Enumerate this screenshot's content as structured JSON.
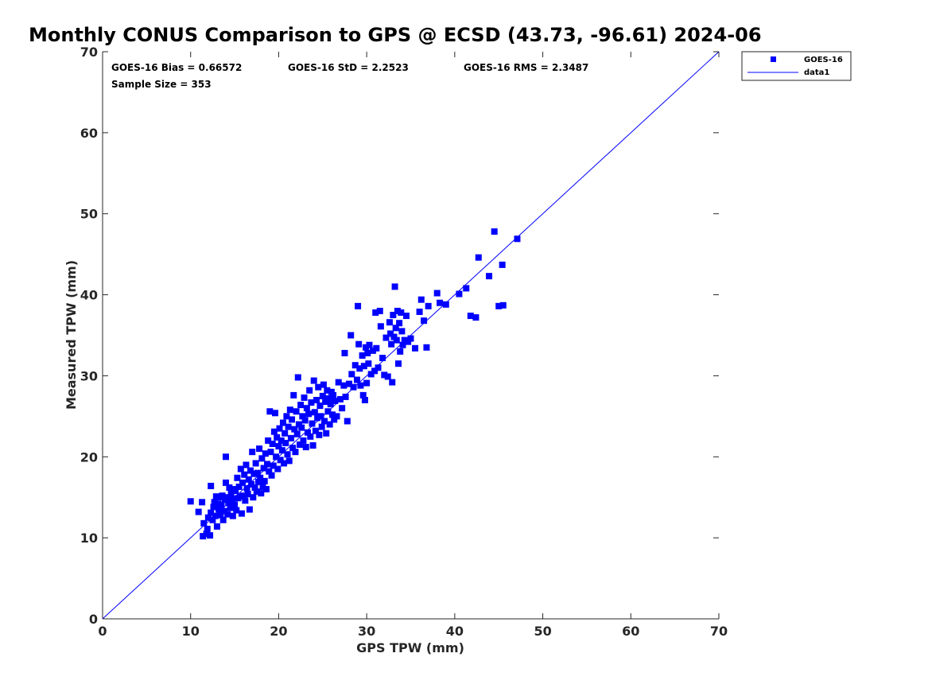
{
  "chart_data": {
    "type": "scatter",
    "title": "Monthly CONUS Comparison to GPS @ ECSD (43.73, -96.61) 2024-06",
    "xlabel": "GPS TPW (mm)",
    "ylabel": "Measured TPW (mm)",
    "xlim": [
      0,
      70
    ],
    "ylim": [
      0,
      70
    ],
    "xticks": [
      "0",
      "10",
      "20",
      "30",
      "40",
      "50",
      "60",
      "70"
    ],
    "yticks": [
      "0",
      "10",
      "20",
      "30",
      "40",
      "50",
      "60",
      "70"
    ],
    "grid": false,
    "legend_position": "outside-top-right",
    "legend": [
      {
        "name": "GOES-16",
        "marker": "square",
        "color": "#0000ff"
      },
      {
        "name": "data1",
        "marker": "line",
        "color": "#0000ff"
      }
    ],
    "stats": {
      "bias": "GOES-16 Bias = 0.66572",
      "std": "GOES-16 StD = 2.2523",
      "rms": "GOES-16 RMS = 2.3487",
      "sample_size": "Sample Size = 353"
    },
    "reference_line": {
      "name": "data1",
      "x": [
        0,
        70
      ],
      "y": [
        0,
        70
      ],
      "color": "#0000ff"
    },
    "series": [
      {
        "name": "GOES-16",
        "color": "#0000ff",
        "points": [
          [
            10.0,
            14.5
          ],
          [
            10.9,
            13.2
          ],
          [
            11.3,
            14.4
          ],
          [
            11.4,
            10.2
          ],
          [
            11.5,
            11.8
          ],
          [
            11.8,
            10.5
          ],
          [
            11.9,
            11.1
          ],
          [
            12.0,
            12.5
          ],
          [
            12.2,
            10.3
          ],
          [
            12.3,
            16.4
          ],
          [
            12.3,
            13.1
          ],
          [
            12.5,
            12.2
          ],
          [
            12.6,
            13.8
          ],
          [
            12.7,
            14.4
          ],
          [
            12.8,
            12.7
          ],
          [
            12.9,
            15.1
          ],
          [
            13.0,
            11.4
          ],
          [
            13.1,
            14.2
          ],
          [
            13.2,
            13.5
          ],
          [
            13.3,
            15.0
          ],
          [
            13.4,
            12.8
          ],
          [
            13.5,
            14.1
          ],
          [
            13.6,
            15.2
          ],
          [
            13.7,
            12.2
          ],
          [
            13.8,
            13.3
          ],
          [
            13.9,
            14.7
          ],
          [
            14.0,
            20.0
          ],
          [
            14.0,
            16.8
          ],
          [
            14.1,
            15.0
          ],
          [
            14.2,
            12.9
          ],
          [
            14.3,
            14.3
          ],
          [
            14.4,
            16.2
          ],
          [
            14.5,
            13.7
          ],
          [
            14.6,
            15.5
          ],
          [
            14.7,
            14.8
          ],
          [
            14.8,
            12.7
          ],
          [
            14.9,
            16.0
          ],
          [
            15.0,
            14.1
          ],
          [
            15.1,
            15.8
          ],
          [
            15.2,
            13.4
          ],
          [
            15.3,
            17.4
          ],
          [
            15.4,
            14.9
          ],
          [
            15.5,
            16.3
          ],
          [
            15.6,
            15.1
          ],
          [
            15.7,
            18.5
          ],
          [
            15.8,
            13.0
          ],
          [
            15.9,
            16.8
          ],
          [
            16.0,
            15.2
          ],
          [
            16.1,
            17.8
          ],
          [
            16.2,
            14.6
          ],
          [
            16.3,
            19.0
          ],
          [
            16.4,
            16.1
          ],
          [
            16.5,
            15.4
          ],
          [
            16.6,
            17.2
          ],
          [
            16.7,
            13.5
          ],
          [
            16.8,
            18.3
          ],
          [
            16.9,
            16.6
          ],
          [
            17.0,
            20.6
          ],
          [
            17.1,
            15.0
          ],
          [
            17.2,
            17.9
          ],
          [
            17.3,
            16.2
          ],
          [
            17.4,
            19.2
          ],
          [
            17.5,
            15.7
          ],
          [
            17.6,
            18.0
          ],
          [
            17.7,
            16.9
          ],
          [
            17.8,
            21.0
          ],
          [
            17.9,
            17.4
          ],
          [
            18.0,
            15.5
          ],
          [
            18.1,
            19.8
          ],
          [
            18.2,
            16.3
          ],
          [
            18.3,
            18.6
          ],
          [
            18.4,
            17.0
          ],
          [
            18.5,
            20.4
          ],
          [
            18.6,
            16.0
          ],
          [
            18.7,
            19.1
          ],
          [
            18.8,
            22.0
          ],
          [
            18.9,
            18.2
          ],
          [
            19.0,
            25.6
          ],
          [
            19.1,
            20.6
          ],
          [
            19.2,
            17.7
          ],
          [
            19.3,
            21.6
          ],
          [
            19.4,
            18.9
          ],
          [
            19.5,
            23.1
          ],
          [
            19.6,
            25.4
          ],
          [
            19.7,
            20.0
          ],
          [
            19.8,
            22.4
          ],
          [
            19.9,
            18.5
          ],
          [
            20.0,
            21.3
          ],
          [
            20.1,
            23.5
          ],
          [
            20.2,
            19.6
          ],
          [
            20.3,
            22.0
          ],
          [
            20.4,
            20.8
          ],
          [
            20.5,
            24.2
          ],
          [
            20.6,
            19.2
          ],
          [
            20.7,
            22.9
          ],
          [
            20.8,
            21.7
          ],
          [
            20.9,
            25.0
          ],
          [
            21.0,
            20.3
          ],
          [
            21.1,
            23.7
          ],
          [
            21.2,
            19.5
          ],
          [
            21.3,
            25.8
          ],
          [
            21.4,
            22.3
          ],
          [
            21.5,
            24.6
          ],
          [
            21.6,
            21.1
          ],
          [
            21.7,
            27.6
          ],
          [
            21.8,
            23.4
          ],
          [
            21.9,
            20.6
          ],
          [
            22.0,
            25.6
          ],
          [
            22.1,
            22.8
          ],
          [
            22.2,
            29.8
          ],
          [
            22.3,
            24.0
          ],
          [
            22.4,
            21.5
          ],
          [
            22.5,
            26.4
          ],
          [
            22.6,
            23.6
          ],
          [
            22.7,
            25.0
          ],
          [
            22.8,
            22.0
          ],
          [
            22.9,
            27.3
          ],
          [
            23.0,
            24.5
          ],
          [
            23.1,
            21.2
          ],
          [
            23.2,
            26.0
          ],
          [
            23.3,
            23.0
          ],
          [
            23.4,
            25.3
          ],
          [
            23.5,
            28.2
          ],
          [
            23.6,
            22.5
          ],
          [
            23.7,
            26.7
          ],
          [
            23.8,
            24.1
          ],
          [
            23.9,
            21.4
          ],
          [
            24.0,
            29.4
          ],
          [
            24.1,
            25.5
          ],
          [
            24.2,
            23.2
          ],
          [
            24.3,
            27.0
          ],
          [
            24.4,
            24.8
          ],
          [
            24.5,
            28.6
          ],
          [
            24.6,
            22.7
          ],
          [
            24.7,
            26.3
          ],
          [
            24.8,
            25.0
          ],
          [
            24.9,
            23.7
          ],
          [
            25.0,
            27.5
          ],
          [
            25.1,
            28.9
          ],
          [
            25.2,
            24.4
          ],
          [
            25.3,
            26.8
          ],
          [
            25.4,
            22.9
          ],
          [
            25.5,
            28.2
          ],
          [
            25.6,
            25.6
          ],
          [
            25.7,
            27.2
          ],
          [
            25.8,
            24.0
          ],
          [
            25.9,
            26.5
          ],
          [
            26.0,
            28.0
          ],
          [
            26.1,
            25.2
          ],
          [
            26.2,
            27.6
          ],
          [
            26.3,
            24.6
          ],
          [
            26.4,
            26.9
          ],
          [
            26.6,
            25.0
          ],
          [
            26.8,
            29.2
          ],
          [
            27.0,
            27.1
          ],
          [
            27.2,
            26.0
          ],
          [
            27.4,
            28.8
          ],
          [
            27.5,
            32.8
          ],
          [
            27.6,
            27.4
          ],
          [
            27.8,
            24.4
          ],
          [
            28.0,
            29.0
          ],
          [
            28.2,
            35.0
          ],
          [
            28.3,
            30.2
          ],
          [
            28.5,
            28.6
          ],
          [
            28.7,
            31.3
          ],
          [
            28.9,
            29.5
          ],
          [
            29.0,
            38.6
          ],
          [
            29.1,
            33.9
          ],
          [
            29.2,
            30.9
          ],
          [
            29.3,
            28.8
          ],
          [
            29.5,
            32.5
          ],
          [
            29.6,
            27.6
          ],
          [
            29.7,
            31.2
          ],
          [
            29.8,
            27.0
          ],
          [
            29.9,
            33.5
          ],
          [
            30.0,
            29.1
          ],
          [
            30.1,
            32.8
          ],
          [
            30.2,
            31.5
          ],
          [
            30.3,
            33.8
          ],
          [
            30.5,
            30.2
          ],
          [
            30.7,
            33.1
          ],
          [
            30.9,
            30.6
          ],
          [
            31.0,
            37.8
          ],
          [
            31.1,
            33.4
          ],
          [
            31.3,
            31.0
          ],
          [
            31.5,
            38.0
          ],
          [
            31.6,
            36.1
          ],
          [
            31.8,
            32.2
          ],
          [
            32.0,
            30.1
          ],
          [
            32.2,
            34.7
          ],
          [
            32.4,
            29.9
          ],
          [
            32.6,
            36.6
          ],
          [
            32.7,
            35.2
          ],
          [
            32.8,
            33.9
          ],
          [
            32.9,
            29.2
          ],
          [
            33.0,
            37.5
          ],
          [
            33.1,
            34.8
          ],
          [
            33.2,
            41.0
          ],
          [
            33.3,
            35.9
          ],
          [
            33.4,
            34.4
          ],
          [
            33.5,
            38.0
          ],
          [
            33.6,
            31.5
          ],
          [
            33.7,
            36.5
          ],
          [
            33.8,
            33.0
          ],
          [
            33.9,
            37.8
          ],
          [
            34.0,
            35.5
          ],
          [
            34.1,
            33.8
          ],
          [
            34.3,
            34.4
          ],
          [
            34.5,
            37.4
          ],
          [
            34.7,
            34.2
          ],
          [
            35.0,
            34.6
          ],
          [
            35.5,
            33.4
          ],
          [
            36.0,
            37.9
          ],
          [
            36.2,
            39.4
          ],
          [
            36.5,
            36.8
          ],
          [
            36.8,
            33.5
          ],
          [
            37.0,
            38.6
          ],
          [
            38.0,
            40.2
          ],
          [
            38.3,
            39.0
          ],
          [
            39.0,
            38.8
          ],
          [
            40.5,
            40.1
          ],
          [
            41.3,
            40.8
          ],
          [
            41.8,
            37.4
          ],
          [
            42.4,
            37.2
          ],
          [
            42.7,
            44.6
          ],
          [
            43.9,
            42.3
          ],
          [
            44.5,
            47.8
          ],
          [
            45.0,
            38.6
          ],
          [
            45.4,
            43.7
          ],
          [
            45.5,
            38.7
          ],
          [
            47.1,
            46.9
          ]
        ]
      }
    ]
  }
}
